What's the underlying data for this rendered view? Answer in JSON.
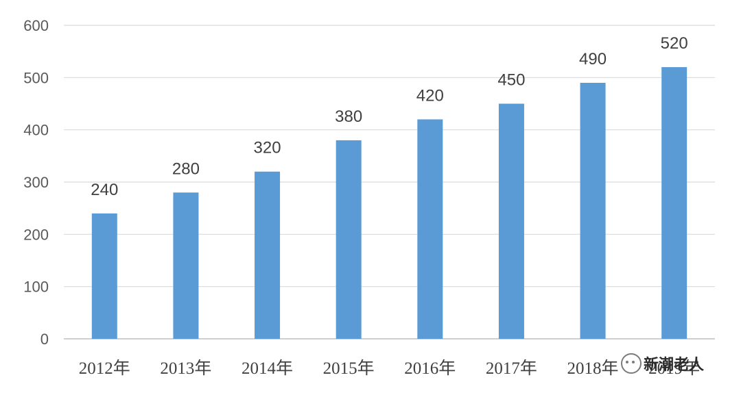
{
  "chart_data": {
    "type": "bar",
    "categories": [
      "2012年",
      "2013年",
      "2014年",
      "2015年",
      "2016年",
      "2017年",
      "2018年",
      "2019年"
    ],
    "values": [
      240,
      280,
      320,
      380,
      420,
      450,
      490,
      520
    ],
    "ylim": [
      0,
      600
    ],
    "yticks": [
      0,
      100,
      200,
      300,
      400,
      500,
      600
    ],
    "grid": true,
    "bar_color": "#5b9bd5",
    "data_labels": true
  },
  "watermark": {
    "text": "新潮老人",
    "icon": "wechat-icon"
  }
}
